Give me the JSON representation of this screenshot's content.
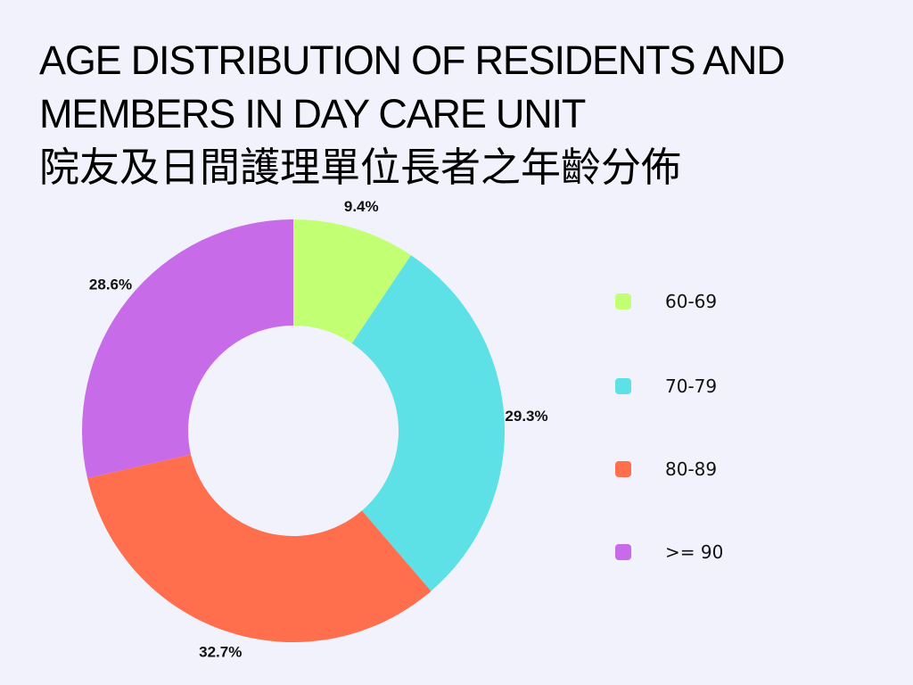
{
  "title": {
    "line1": "AGE DISTRIBUTION OF RESIDENTS AND",
    "line2": "MEMBERS IN DAY CARE UNIT",
    "line3": "院友及日間護理單位長者之年齡分佈"
  },
  "chart_data": {
    "type": "pie",
    "style": "donut",
    "categories": [
      "60-69",
      "70-79",
      "80-89",
      ">= 90"
    ],
    "values": [
      9.4,
      29.3,
      32.7,
      28.6
    ],
    "labels": [
      "9.4%",
      "29.3%",
      "32.7%",
      "28.6%"
    ],
    "colors": [
      "#C2FF72",
      "#5DE1E6",
      "#FF6F4E",
      "#C76BE8"
    ],
    "legend_position": "right"
  }
}
